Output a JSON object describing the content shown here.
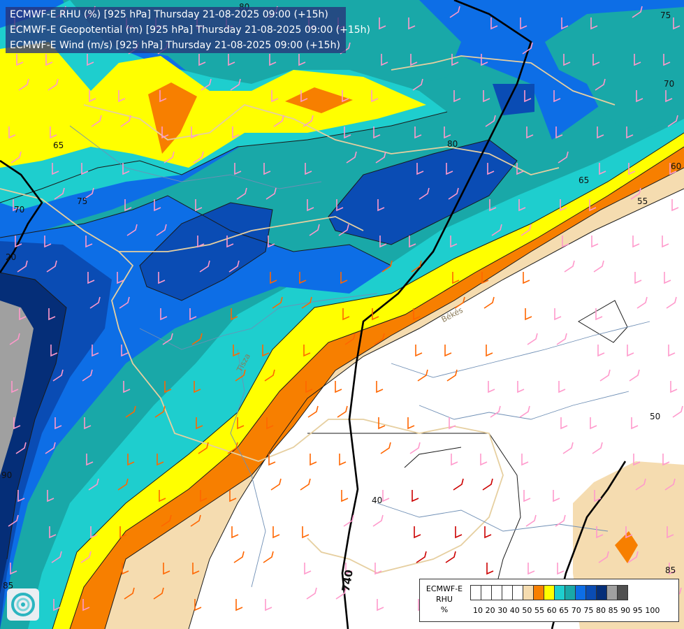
{
  "header": {
    "lines": [
      "ECMWF-E RHU (%) [925 hPa] Thursday 21-08-2025 09:00 (+15h)",
      "ECMWF-E Geopotential (m) [925 hPa] Thursday 21-08-2025 09:00 (+15h)",
      "ECMWF-E Wind (m/s) [925 hPa] Thursday 21-08-2025 09:00 (+15h)"
    ]
  },
  "legend": {
    "title_lines": [
      "ECMWF-E",
      "RHU",
      "%"
    ],
    "labels": [
      "10",
      "20",
      "30",
      "40",
      "50",
      "55",
      "60",
      "65",
      "70",
      "75",
      "80",
      "85",
      "90",
      "95",
      "100"
    ],
    "colors": [
      "#ffffff",
      "#ffffff",
      "#ffffff",
      "#ffffff",
      "#ffffff",
      "#f5dcb0",
      "#f77f00",
      "#ffff00",
      "#1ecece",
      "#19a8a8",
      "#0d6ee6",
      "#0a4cb4",
      "#052e78",
      "#a0a0a0",
      "#505050"
    ]
  },
  "map": {
    "contour_labels": [
      "80",
      "75",
      "70",
      "65",
      "75",
      "70",
      "80",
      "65",
      "60",
      "55",
      "20",
      "90",
      "85",
      "85",
      "50",
      "40"
    ],
    "geopotential_labels": [
      "740"
    ],
    "place_labels": [
      "Békés",
      "Tisza"
    ],
    "barb_colors": {
      "light": "#ff99cc",
      "orange": "#ff6600",
      "red": "#cc0000",
      "white": "#ffffff"
    }
  },
  "logo": {
    "icon": "ecmwf-swirl-icon"
  }
}
